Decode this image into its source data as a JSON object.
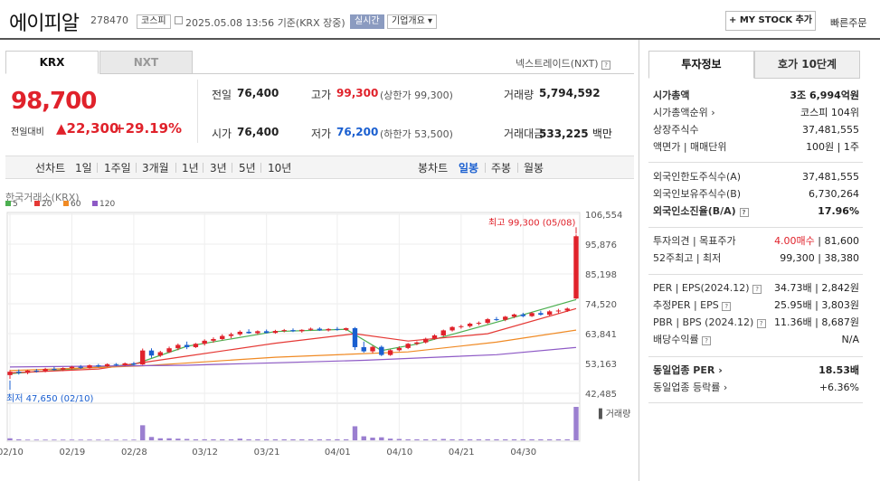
{
  "header": {
    "name": "에이피알",
    "code": "278470",
    "market_badge": "코스피",
    "datetime": "2025.05.08 13:56",
    "basis": "기준(KRX 장중)",
    "live_badge": "실시간",
    "overview_button": "기업개요",
    "mystock_button": "+ MY STOCK 추가",
    "quick_order": "빠른주문"
  },
  "tabs": {
    "krx": "KRX",
    "nxt": "NXT",
    "nxt_link": "넥스트레이드(NXT)"
  },
  "quote": {
    "price": "98,700",
    "change_label": "전일대비",
    "change": "▲22,300",
    "change_pct": "+29.19%",
    "prev_label": "전일",
    "prev": "76,400",
    "high_label": "고가",
    "high": "99,300",
    "high_limit": "(상한가 99,300)",
    "volume_label": "거래량",
    "volume": "5,794,592",
    "open_label": "시가",
    "open": "76,400",
    "low_label": "저가",
    "low": "76,200",
    "low_limit": "(하한가 53,500)",
    "amount_label": "거래대금",
    "amount": "533,225",
    "amount_unit": "백만"
  },
  "periods": {
    "line": "선차트",
    "d1": "1일",
    "w1": "1주일",
    "m3": "3개월",
    "y1": "1년",
    "y3": "3년",
    "y5": "5년",
    "y10": "10년",
    "candle": "봉차트",
    "daily": "일봉",
    "weekly": "주봉",
    "monthly": "월봉"
  },
  "exchange_label": "한국거래소(KRX)",
  "ma_legend": [
    {
      "label": "5",
      "color": "#4caf50"
    },
    {
      "label": "20",
      "color": "#e53935"
    },
    {
      "label": "60",
      "color": "#f08a24"
    },
    {
      "label": "120",
      "color": "#8e5ac6"
    }
  ],
  "chart_data": {
    "type": "candlestick",
    "y_ticks": [
      "106,554",
      "95,876",
      "85,198",
      "74,520",
      "63,841",
      "53,163",
      "42,485"
    ],
    "ylim": [
      42485,
      106554
    ],
    "x_ticks": [
      "02/10",
      "02/19",
      "02/28",
      "03/12",
      "03/21",
      "04/01",
      "04/10",
      "04/21",
      "04/30"
    ],
    "max_annotation": "최고 99,300 (05/08)",
    "min_annotation": "최저 47,650 (02/10)",
    "volume_label": "거래량",
    "candles": [
      [
        49000,
        50800,
        47650,
        50200
      ],
      [
        50200,
        51000,
        49200,
        49800
      ],
      [
        49800,
        50900,
        49300,
        50600
      ],
      [
        50600,
        51200,
        49900,
        50300
      ],
      [
        50300,
        51600,
        50000,
        51200
      ],
      [
        51200,
        52000,
        50600,
        51000
      ],
      [
        51000,
        51800,
        50400,
        51500
      ],
      [
        51500,
        52300,
        51000,
        52000
      ],
      [
        52000,
        52600,
        51200,
        51600
      ],
      [
        51600,
        52800,
        51300,
        52500
      ],
      [
        52500,
        53000,
        51800,
        52200
      ],
      [
        52200,
        53200,
        51900,
        52900
      ],
      [
        52900,
        53300,
        52200,
        52600
      ],
      [
        52600,
        53500,
        52300,
        53200
      ],
      [
        53200,
        53700,
        52500,
        52800
      ],
      [
        52800,
        58500,
        52600,
        57800
      ],
      [
        57800,
        58600,
        55200,
        56000
      ],
      [
        56000,
        57700,
        55500,
        57200
      ],
      [
        57200,
        59200,
        56900,
        58600
      ],
      [
        58600,
        60300,
        57900,
        59800
      ],
      [
        59800,
        61000,
        58300,
        59000
      ],
      [
        59000,
        60500,
        58700,
        60200
      ],
      [
        60200,
        61800,
        59600,
        61300
      ],
      [
        61300,
        62500,
        60600,
        61900
      ],
      [
        61900,
        63600,
        61500,
        63000
      ],
      [
        63000,
        64200,
        62200,
        63600
      ],
      [
        63600,
        65000,
        63100,
        64500
      ],
      [
        64500,
        65400,
        63800,
        64000
      ],
      [
        64000,
        65000,
        63500,
        64700
      ],
      [
        64700,
        65300,
        63900,
        64100
      ],
      [
        64100,
        65200,
        63800,
        64800
      ],
      [
        64800,
        65500,
        64300,
        65100
      ],
      [
        65100,
        65700,
        64400,
        64700
      ],
      [
        64700,
        65400,
        64200,
        65200
      ],
      [
        65200,
        66000,
        64900,
        65600
      ],
      [
        65600,
        66100,
        64800,
        65000
      ],
      [
        65000,
        65800,
        64600,
        65500
      ],
      [
        65500,
        66200,
        64900,
        65200
      ],
      [
        65200,
        66000,
        64800,
        65800
      ],
      [
        65800,
        66200,
        58000,
        59000
      ],
      [
        59000,
        61000,
        57000,
        57500
      ],
      [
        57500,
        59500,
        56800,
        59100
      ],
      [
        59100,
        59600,
        55800,
        56200
      ],
      [
        56200,
        58200,
        55900,
        57900
      ],
      [
        57900,
        59300,
        57500,
        58700
      ],
      [
        58700,
        60500,
        58300,
        60200
      ],
      [
        60200,
        61100,
        59700,
        60700
      ],
      [
        60700,
        62400,
        60300,
        62000
      ],
      [
        62000,
        63600,
        61600,
        63200
      ],
      [
        63200,
        65300,
        62800,
        65000
      ],
      [
        65000,
        66500,
        64600,
        66200
      ],
      [
        66200,
        67000,
        65600,
        66500
      ],
      [
        66500,
        67800,
        66000,
        67400
      ],
      [
        67400,
        68200,
        66800,
        67700
      ],
      [
        67700,
        69400,
        67300,
        69000
      ],
      [
        69000,
        69800,
        68400,
        68800
      ],
      [
        68800,
        70200,
        68300,
        69900
      ],
      [
        69900,
        71000,
        69400,
        70700
      ],
      [
        70700,
        71300,
        69700,
        70100
      ],
      [
        70100,
        71600,
        69800,
        71200
      ],
      [
        71200,
        72000,
        70300,
        70600
      ],
      [
        70600,
        72200,
        70200,
        71800
      ],
      [
        71800,
        72700,
        71100,
        72100
      ],
      [
        72100,
        73200,
        71600,
        72800
      ],
      [
        76400,
        99300,
        76200,
        98700
      ]
    ],
    "ma": {
      "ma5": [
        [
          0,
          49500
        ],
        [
          14,
          52800
        ],
        [
          20,
          59300
        ],
        [
          30,
          64600
        ],
        [
          38,
          65400
        ],
        [
          42,
          57800
        ],
        [
          46,
          60100
        ],
        [
          56,
          68800
        ],
        [
          64,
          76000
        ]
      ],
      "ma20": [
        [
          0,
          49800
        ],
        [
          10,
          51200
        ],
        [
          20,
          55800
        ],
        [
          30,
          60400
        ],
        [
          39,
          63800
        ],
        [
          45,
          61200
        ],
        [
          54,
          63800
        ],
        [
          64,
          72800
        ]
      ],
      "ma60": [
        [
          0,
          50600
        ],
        [
          15,
          52300
        ],
        [
          30,
          55400
        ],
        [
          45,
          57300
        ],
        [
          55,
          60800
        ],
        [
          64,
          65100
        ]
      ],
      "ma120": [
        [
          0,
          51900
        ],
        [
          20,
          52500
        ],
        [
          40,
          54300
        ],
        [
          55,
          56300
        ],
        [
          64,
          58900
        ]
      ]
    },
    "volumes": [
      6,
      3,
      2,
      2,
      2,
      2,
      2,
      2,
      2,
      2,
      2,
      2,
      2,
      2,
      2,
      45,
      10,
      6,
      6,
      5,
      4,
      3,
      3,
      3,
      3,
      3,
      5,
      3,
      3,
      3,
      3,
      3,
      3,
      3,
      3,
      3,
      3,
      3,
      3,
      42,
      12,
      8,
      9,
      5,
      4,
      3,
      3,
      3,
      3,
      4,
      3,
      3,
      3,
      3,
      3,
      3,
      3,
      3,
      3,
      3,
      3,
      3,
      3,
      3,
      100
    ]
  },
  "right_tabs": {
    "info": "투자정보",
    "hoga": "호가 10단계"
  },
  "info": {
    "market_cap_label": "시가총액",
    "market_cap": "3조 6,994억원",
    "market_cap_rank_label": "시가총액순위",
    "market_cap_rank": "코스피 104위",
    "shares_label": "상장주식수",
    "shares": "37,481,555",
    "par_label": "액면가 | 매매단위",
    "par": "100원 | 1주",
    "foreign_limit_label": "외국인한도주식수(A)",
    "foreign_limit": "37,481,555",
    "foreign_hold_label": "외국인보유주식수(B)",
    "foreign_hold": "6,730,264",
    "foreign_ratio_label": "외국인소진율(B/A)",
    "foreign_ratio": "17.96%",
    "opinion_label": "투자의견 | 목표주가",
    "opinion": "4.00매수",
    "target": "81,600",
    "w52_label": "52주최고 | 최저",
    "w52_high": "99,300",
    "w52_low": "38,380",
    "per_label": "PER | EPS(2024.12)",
    "per": "34.73배",
    "eps": "2,842원",
    "est_per_label": "추정PER | EPS",
    "est_per": "25.95배",
    "est_eps": "3,803원",
    "pbr_label": "PBR | BPS (2024.12)",
    "pbr": "11.36배",
    "bps": "8,687원",
    "div_label": "배당수익률",
    "div": "N/A",
    "sector_per_label": "동일업종 PER",
    "sector_per": "18.53배",
    "sector_chg_label": "동일업종 등락률",
    "sector_chg": "+6.36%"
  }
}
